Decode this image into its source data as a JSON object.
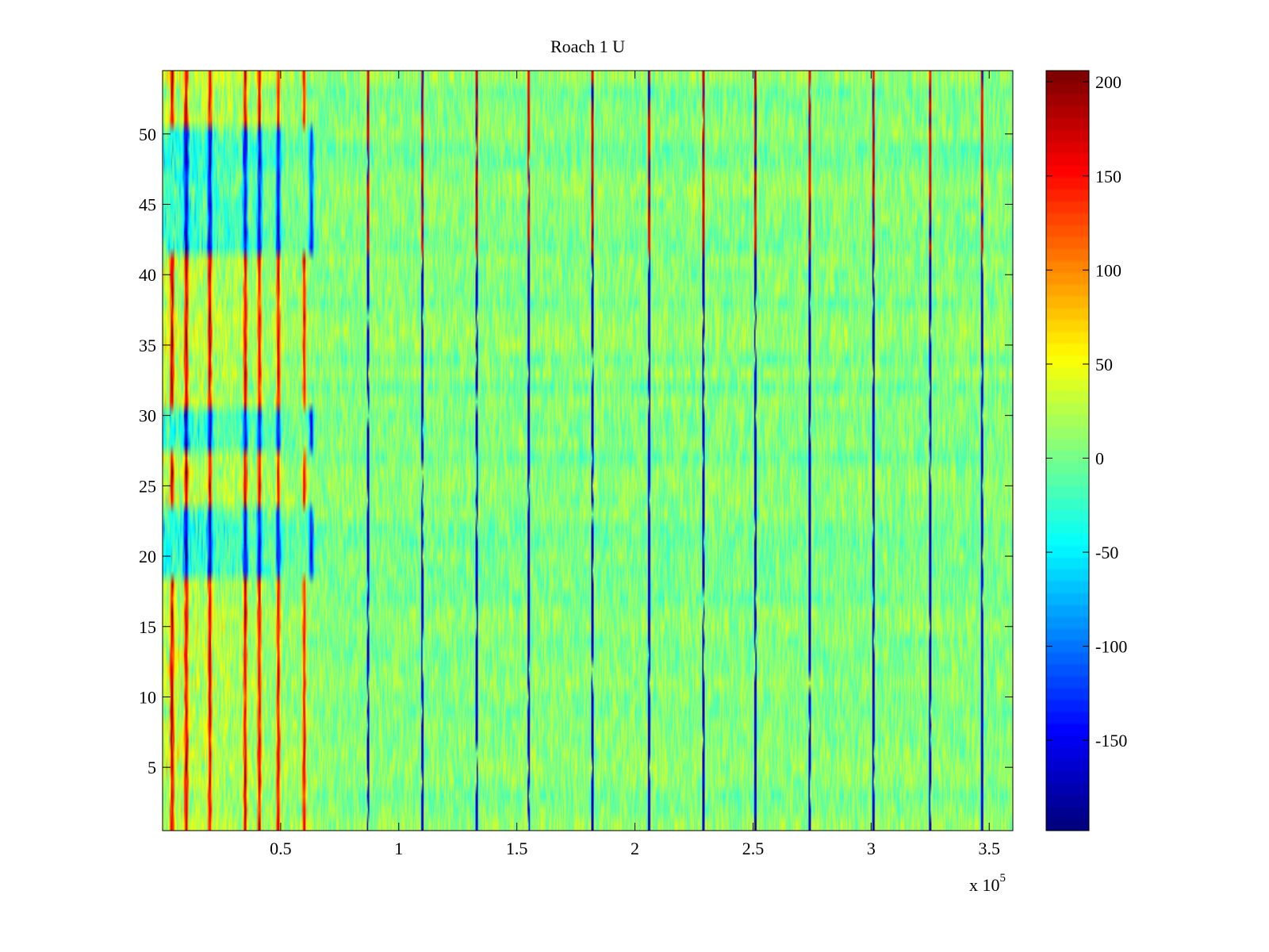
{
  "chart_data": {
    "type": "heatmap",
    "title": "Roach 1 U",
    "xlabel": "",
    "ylabel": "",
    "x_multiplier_label": "x 10",
    "x_multiplier_exponent": "5",
    "xlim": [
      0.0,
      3.6
    ],
    "ylim": [
      0.5,
      54.5
    ],
    "x_ticks": [
      0.5,
      1,
      1.5,
      2,
      2.5,
      3,
      3.5
    ],
    "x_tick_labels": [
      "0.5",
      "1",
      "1.5",
      "2",
      "2.5",
      "3",
      "3.5"
    ],
    "y_ticks": [
      5,
      10,
      15,
      20,
      25,
      30,
      35,
      40,
      45,
      50
    ],
    "y_tick_labels": [
      "5",
      "10",
      "15",
      "20",
      "25",
      "30",
      "35",
      "40",
      "45",
      "50"
    ],
    "colorbar": {
      "colormap": "jet",
      "clim": [
        -198,
        206
      ],
      "ticks": [
        200,
        150,
        100,
        50,
        0,
        -50,
        -100,
        -150
      ],
      "tick_labels": [
        "200",
        "150",
        "100",
        "50",
        "0",
        "-50",
        "-100",
        "-150"
      ]
    },
    "rows": 54,
    "background_level": 5,
    "background_spread": 28,
    "early_region_end_x": 0.68,
    "early_rows_positive": [
      1,
      2,
      3,
      4,
      5,
      6,
      7,
      8,
      9,
      10,
      11,
      12,
      13,
      14,
      15,
      16,
      17,
      18,
      24,
      25,
      26,
      27,
      31,
      32,
      33,
      34,
      35,
      36,
      37,
      38,
      39,
      40,
      41,
      51,
      52,
      53,
      54
    ],
    "early_rows_negative": [
      19,
      20,
      21,
      22,
      23,
      28,
      29,
      30,
      42,
      43,
      44,
      45,
      46,
      47,
      48,
      49,
      50
    ],
    "early_positive_columns": [
      0.04,
      0.1,
      0.2,
      0.35,
      0.41,
      0.49,
      0.6
    ],
    "early_negative_columns": [
      0.1,
      0.2,
      0.35,
      0.41,
      0.49,
      0.63
    ],
    "spike_columns_x": [
      0.87,
      1.1,
      1.33,
      1.55,
      1.82,
      2.06,
      2.29,
      2.51,
      2.74,
      3.01,
      3.25,
      3.47
    ],
    "spike_positive_rows_from": 42,
    "colors": {
      "background": "#ffffff",
      "axes": "#000000"
    }
  }
}
